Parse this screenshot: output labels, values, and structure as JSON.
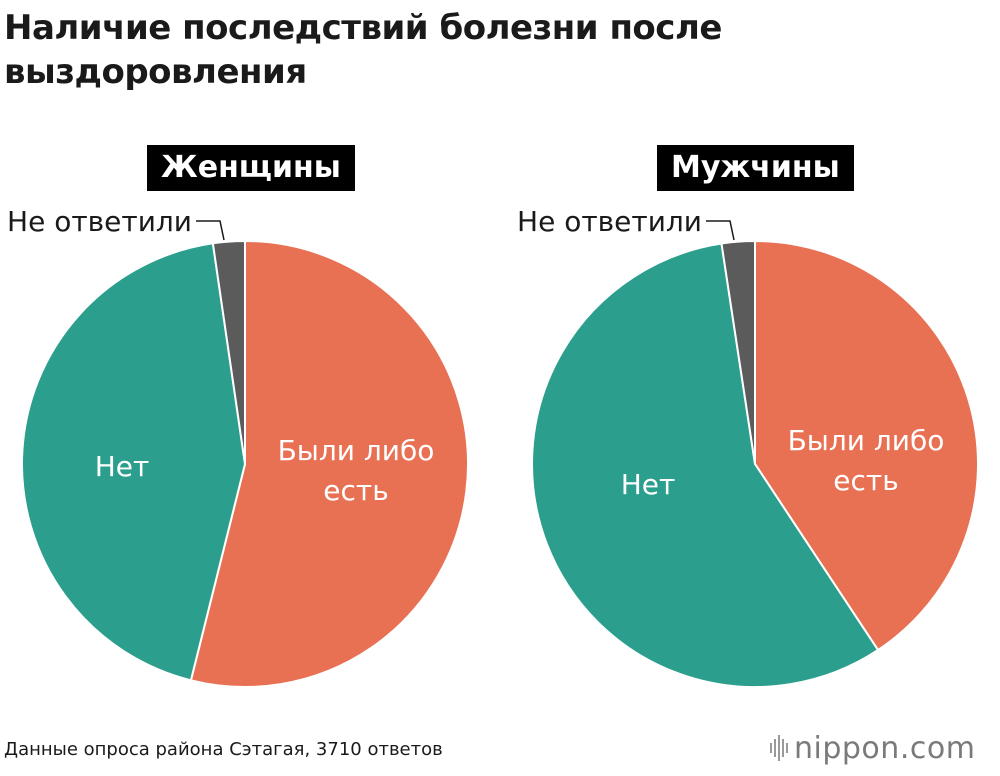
{
  "title": "Наличие последствий болезни после выздоровления",
  "source": "Данные опроса района Сэтагая, 3710 ответов",
  "logo": {
    "name": "nippon",
    "domain": ".com"
  },
  "colors": {
    "yes": "#E87053",
    "no": "#2B9E8E",
    "no_answer": "#5B5B5B"
  },
  "chart_data": [
    {
      "type": "pie",
      "title": "Женщины",
      "slices": [
        {
          "label": "Были либо есть",
          "value": 53.9,
          "color": "#E87053"
        },
        {
          "label": "Нет",
          "value": 43.8,
          "color": "#2B9E8E"
        },
        {
          "label": "Не ответили",
          "value": 2.3,
          "color": "#5B5B5B"
        }
      ]
    },
    {
      "type": "pie",
      "title": "Мужчины",
      "slices": [
        {
          "label": "Были либо есть",
          "value": 40.7,
          "color": "#E87053"
        },
        {
          "label": "Нет",
          "value": 56.9,
          "color": "#2B9E8E"
        },
        {
          "label": "Не ответили",
          "value": 2.4,
          "color": "#5B5B5B"
        }
      ]
    }
  ]
}
